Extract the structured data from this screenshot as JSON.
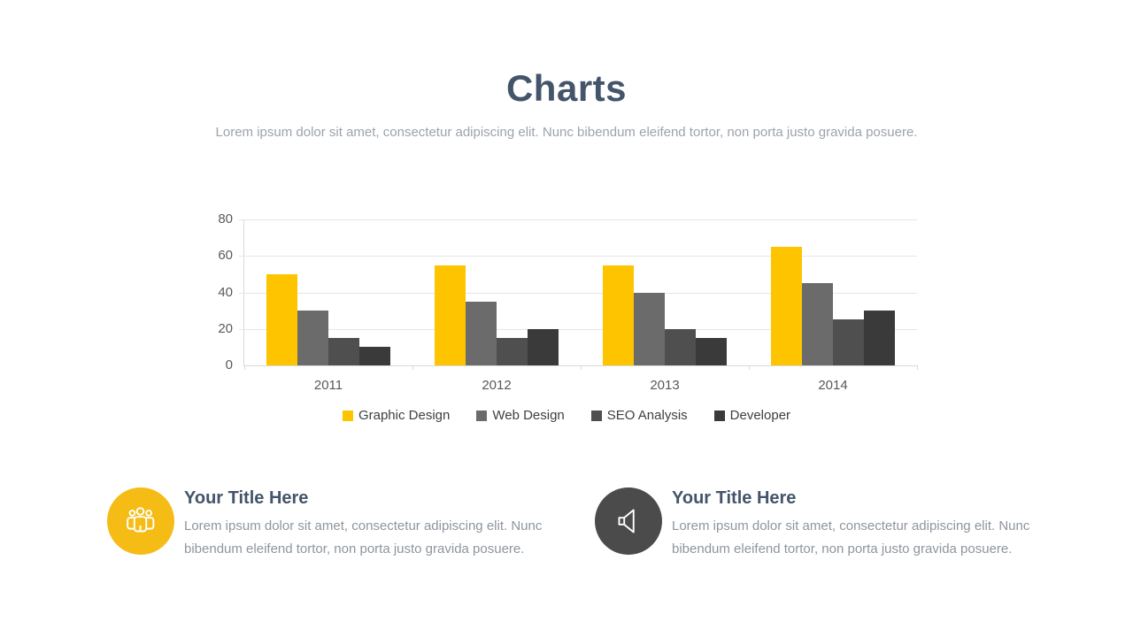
{
  "page": {
    "background": "#FFFFFF"
  },
  "header": {
    "title": "Charts",
    "subtitle": "Lorem ipsum dolor sit amet, consectetur adipiscing elit. Nunc bibendum eleifend tortor, non porta justo gravida posuere."
  },
  "chart_data": {
    "type": "bar",
    "categories": [
      "2011",
      "2012",
      "2013",
      "2014"
    ],
    "series": [
      {
        "name": "Graphic Design",
        "color": "#FFC400",
        "values": [
          50,
          55,
          55,
          65
        ]
      },
      {
        "name": "Web Design",
        "color": "#6B6B6B",
        "values": [
          30,
          35,
          40,
          45
        ]
      },
      {
        "name": "SEO Analysis",
        "color": "#4F4F4F",
        "values": [
          15,
          15,
          20,
          25
        ]
      },
      {
        "name": "Developer",
        "color": "#3A3A3A",
        "values": [
          10,
          20,
          15,
          30
        ]
      }
    ],
    "title": "",
    "xlabel": "",
    "ylabel": "",
    "ylim": [
      0,
      80
    ],
    "yticks": [
      0,
      20,
      40,
      60,
      80
    ],
    "grid": true,
    "legend_position": "bottom",
    "axis_label_color": "#595959",
    "grid_color": "#E6E6E6"
  },
  "features": [
    {
      "icon": "people-group-icon",
      "icon_bg": "#F5BC16",
      "title": "Your Title Here",
      "body": "Lorem ipsum dolor sit amet, consectetur adipiscing elit. Nunc bibendum eleifend tortor, non porta justo gravida posuere."
    },
    {
      "icon": "speaker-icon",
      "icon_bg": "#4B4B4B",
      "title": "Your Title Here",
      "body": "Lorem ipsum dolor sit amet, consectetur adipiscing elit. Nunc bibendum eleifend tortor, non porta justo gravida posuere."
    }
  ]
}
